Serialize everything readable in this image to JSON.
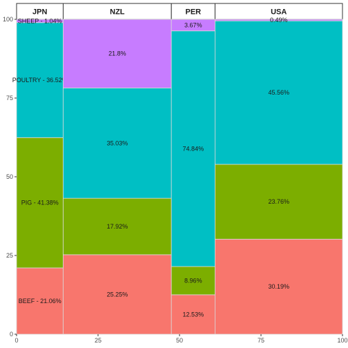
{
  "chart_data": {
    "type": "mosaic",
    "columns": [
      {
        "name": "JPN",
        "width_share": 14.3
      },
      {
        "name": "NZL",
        "width_share": 33.2
      },
      {
        "name": "PER",
        "width_share": 13.4
      },
      {
        "name": "USA",
        "width_share": 39.1
      }
    ],
    "stack_order": [
      "BEEF",
      "PIG",
      "POULTRY",
      "SHEEP"
    ],
    "colors": {
      "BEEF": "#F8766D",
      "PIG": "#7CAE00",
      "POULTRY": "#00BFC4",
      "SHEEP": "#C77CFF"
    },
    "segments": [
      {
        "country": "JPN",
        "category": "BEEF",
        "value": 21.06,
        "label": "BEEF - 21.06%"
      },
      {
        "country": "JPN",
        "category": "PIG",
        "value": 41.38,
        "label": "PIG - 41.38%"
      },
      {
        "country": "JPN",
        "category": "POULTRY",
        "value": 36.52,
        "label": "POULTRY - 36.52%"
      },
      {
        "country": "JPN",
        "category": "SHEEP",
        "value": 1.04,
        "label": "SHEEP - 1.04%"
      },
      {
        "country": "NZL",
        "category": "BEEF",
        "value": 25.25,
        "label": "25.25%"
      },
      {
        "country": "NZL",
        "category": "PIG",
        "value": 17.92,
        "label": "17.92%"
      },
      {
        "country": "NZL",
        "category": "POULTRY",
        "value": 35.03,
        "label": "35.03%"
      },
      {
        "country": "NZL",
        "category": "SHEEP",
        "value": 21.8,
        "label": "21.8%"
      },
      {
        "country": "PER",
        "category": "BEEF",
        "value": 12.53,
        "label": "12.53%"
      },
      {
        "country": "PER",
        "category": "PIG",
        "value": 8.96,
        "label": "8.96%"
      },
      {
        "country": "PER",
        "category": "POULTRY",
        "value": 74.84,
        "label": "74.84%"
      },
      {
        "country": "PER",
        "category": "SHEEP",
        "value": 3.67,
        "label": "3.67%"
      },
      {
        "country": "USA",
        "category": "BEEF",
        "value": 30.19,
        "label": "30.19%"
      },
      {
        "country": "USA",
        "category": "PIG",
        "value": 23.76,
        "label": "23.76%"
      },
      {
        "country": "USA",
        "category": "POULTRY",
        "value": 45.56,
        "label": "45.56%"
      },
      {
        "country": "USA",
        "category": "SHEEP",
        "value": 0.49,
        "label": "0.49%"
      }
    ],
    "x_ticks": [
      "0",
      "25",
      "50",
      "75",
      "100"
    ],
    "y_ticks": [
      "0",
      "25",
      "50",
      "75",
      "100"
    ],
    "xlim": [
      0,
      100
    ],
    "ylim": [
      0,
      100
    ],
    "grid": false,
    "legend": "none"
  }
}
